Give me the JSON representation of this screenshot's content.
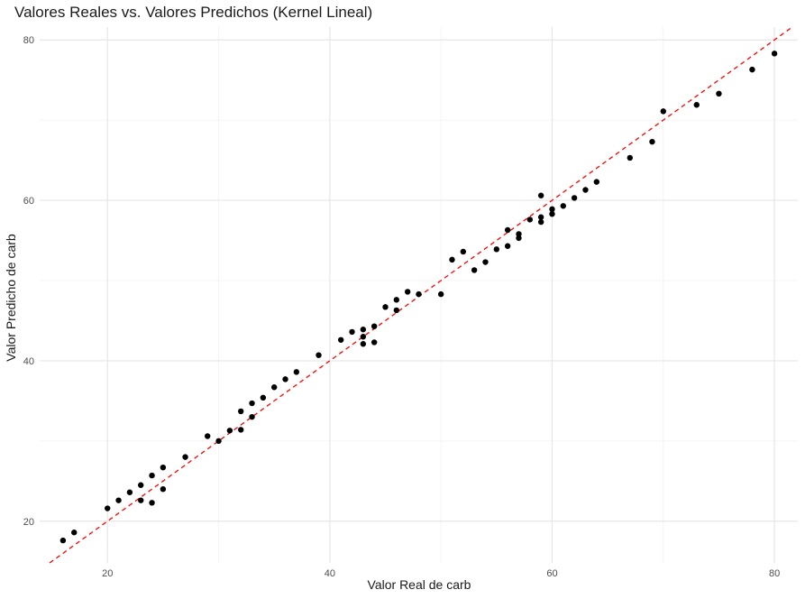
{
  "chart_data": {
    "type": "scatter",
    "title": "Valores Reales vs. Valores Predichos (Kernel Lineal)",
    "xlabel": "Valor Real de carb",
    "ylabel": "Valor Predicho de carb",
    "xlim": [
      13.9,
      82.1
    ],
    "ylim": [
      14.8,
      81.6
    ],
    "x_ticks": [
      20,
      40,
      60,
      80
    ],
    "y_ticks": [
      20,
      40,
      60,
      80
    ],
    "grid": true,
    "reference_line": {
      "slope": 1,
      "intercept": 0,
      "style": "dashed",
      "color": "#ff0000"
    },
    "point_color": "#000000",
    "points": [
      [
        16,
        17.6
      ],
      [
        17,
        18.6
      ],
      [
        20,
        21.6
      ],
      [
        21,
        22.6
      ],
      [
        22,
        23.6
      ],
      [
        23,
        22.6
      ],
      [
        23,
        24.5
      ],
      [
        24,
        22.3
      ],
      [
        24,
        25.7
      ],
      [
        25,
        24.0
      ],
      [
        25,
        26.7
      ],
      [
        27,
        28.0
      ],
      [
        29,
        30.6
      ],
      [
        30,
        30.0
      ],
      [
        31,
        31.3
      ],
      [
        32,
        31.4
      ],
      [
        32,
        33.7
      ],
      [
        33,
        33.0
      ],
      [
        33,
        34.7
      ],
      [
        34,
        35.4
      ],
      [
        35,
        36.7
      ],
      [
        36,
        37.7
      ],
      [
        37,
        38.6
      ],
      [
        39,
        40.7
      ],
      [
        41,
        42.6
      ],
      [
        42,
        43.6
      ],
      [
        43,
        42.1
      ],
      [
        43,
        43.0
      ],
      [
        43,
        43.9
      ],
      [
        44,
        42.3
      ],
      [
        44,
        44.3
      ],
      [
        45,
        46.7
      ],
      [
        46,
        46.3
      ],
      [
        46,
        47.6
      ],
      [
        47,
        48.6
      ],
      [
        48,
        48.3
      ],
      [
        50,
        48.3
      ],
      [
        51,
        52.6
      ],
      [
        52,
        53.6
      ],
      [
        53,
        51.3
      ],
      [
        54,
        52.3
      ],
      [
        55,
        53.9
      ],
      [
        56,
        54.3
      ],
      [
        56,
        56.3
      ],
      [
        57,
        55.3
      ],
      [
        57,
        55.8
      ],
      [
        58,
        57.6
      ],
      [
        59,
        57.3
      ],
      [
        59,
        57.9
      ],
      [
        59,
        60.6
      ],
      [
        60,
        58.3
      ],
      [
        60,
        58.9
      ],
      [
        61,
        59.3
      ],
      [
        62,
        60.3
      ],
      [
        63,
        61.3
      ],
      [
        64,
        62.3
      ],
      [
        67,
        65.3
      ],
      [
        69,
        67.3
      ],
      [
        70,
        71.1
      ],
      [
        73,
        71.9
      ],
      [
        75,
        73.3
      ],
      [
        78,
        76.3
      ],
      [
        80,
        78.3
      ]
    ]
  }
}
